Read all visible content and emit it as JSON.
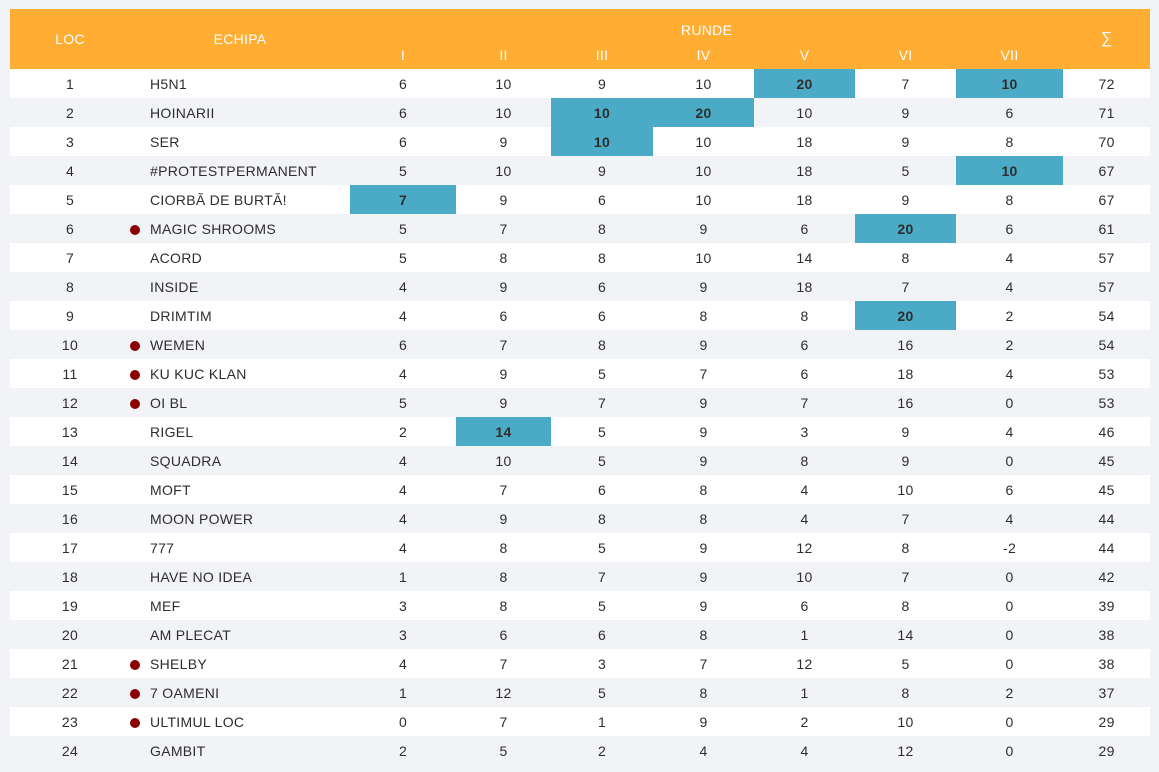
{
  "header": {
    "loc": "LOC",
    "echipa": "ECHIPA",
    "runde": "RUNDE",
    "rounds": [
      "I",
      "II",
      "III",
      "IV",
      "V",
      "VI",
      "VII"
    ],
    "total": "∑"
  },
  "colors": {
    "header_bg": "#ffad33",
    "highlight": "#4babc7",
    "dot": "#8b0000"
  },
  "rows": [
    {
      "loc": "1",
      "team": "H5N1",
      "dot": false,
      "scores": [
        "6",
        "10",
        "9",
        "10",
        "20",
        "7",
        "10"
      ],
      "total": "72",
      "hl": [
        4,
        6
      ]
    },
    {
      "loc": "2",
      "team": "HOINARII",
      "dot": false,
      "scores": [
        "6",
        "10",
        "10",
        "20",
        "10",
        "9",
        "6"
      ],
      "total": "71",
      "hl": [
        2,
        3
      ]
    },
    {
      "loc": "3",
      "team": "SER",
      "dot": false,
      "scores": [
        "6",
        "9",
        "10",
        "10",
        "18",
        "9",
        "8"
      ],
      "total": "70",
      "hl": [
        2
      ]
    },
    {
      "loc": "4",
      "team": "#PROTESTPERMANENT",
      "dot": false,
      "scores": [
        "5",
        "10",
        "9",
        "10",
        "18",
        "5",
        "10"
      ],
      "total": "67",
      "hl": [
        6
      ]
    },
    {
      "loc": "5",
      "team": "CIORBĂ DE BURTĂ!",
      "dot": false,
      "scores": [
        "7",
        "9",
        "6",
        "10",
        "18",
        "9",
        "8"
      ],
      "total": "67",
      "hl": [
        0
      ]
    },
    {
      "loc": "6",
      "team": "MAGIC SHROOMS",
      "dot": true,
      "scores": [
        "5",
        "7",
        "8",
        "9",
        "6",
        "20",
        "6"
      ],
      "total": "61",
      "hl": [
        5
      ]
    },
    {
      "loc": "7",
      "team": "ACORD",
      "dot": false,
      "scores": [
        "5",
        "8",
        "8",
        "10",
        "14",
        "8",
        "4"
      ],
      "total": "57",
      "hl": []
    },
    {
      "loc": "8",
      "team": "INSIDE",
      "dot": false,
      "scores": [
        "4",
        "9",
        "6",
        "9",
        "18",
        "7",
        "4"
      ],
      "total": "57",
      "hl": []
    },
    {
      "loc": "9",
      "team": "DRIMTIM",
      "dot": false,
      "scores": [
        "4",
        "6",
        "6",
        "8",
        "8",
        "20",
        "2"
      ],
      "total": "54",
      "hl": [
        5
      ]
    },
    {
      "loc": "10",
      "team": "WEMEN",
      "dot": true,
      "scores": [
        "6",
        "7",
        "8",
        "9",
        "6",
        "16",
        "2"
      ],
      "total": "54",
      "hl": []
    },
    {
      "loc": "11",
      "team": "KU KUC KLAN",
      "dot": true,
      "scores": [
        "4",
        "9",
        "5",
        "7",
        "6",
        "18",
        "4"
      ],
      "total": "53",
      "hl": []
    },
    {
      "loc": "12",
      "team": "OI BL",
      "dot": true,
      "scores": [
        "5",
        "9",
        "7",
        "9",
        "7",
        "16",
        "0"
      ],
      "total": "53",
      "hl": []
    },
    {
      "loc": "13",
      "team": "RIGEL",
      "dot": false,
      "scores": [
        "2",
        "14",
        "5",
        "9",
        "3",
        "9",
        "4"
      ],
      "total": "46",
      "hl": [
        1
      ]
    },
    {
      "loc": "14",
      "team": "SQUADRA",
      "dot": false,
      "scores": [
        "4",
        "10",
        "5",
        "9",
        "8",
        "9",
        "0"
      ],
      "total": "45",
      "hl": []
    },
    {
      "loc": "15",
      "team": "MOFT",
      "dot": false,
      "scores": [
        "4",
        "7",
        "6",
        "8",
        "4",
        "10",
        "6"
      ],
      "total": "45",
      "hl": []
    },
    {
      "loc": "16",
      "team": "MOON POWER",
      "dot": false,
      "scores": [
        "4",
        "9",
        "8",
        "8",
        "4",
        "7",
        "4"
      ],
      "total": "44",
      "hl": []
    },
    {
      "loc": "17",
      "team": "777",
      "dot": false,
      "scores": [
        "4",
        "8",
        "5",
        "9",
        "12",
        "8",
        "-2"
      ],
      "total": "44",
      "hl": []
    },
    {
      "loc": "18",
      "team": "HAVE NO IDEA",
      "dot": false,
      "scores": [
        "1",
        "8",
        "7",
        "9",
        "10",
        "7",
        "0"
      ],
      "total": "42",
      "hl": []
    },
    {
      "loc": "19",
      "team": "MEF",
      "dot": false,
      "scores": [
        "3",
        "8",
        "5",
        "9",
        "6",
        "8",
        "0"
      ],
      "total": "39",
      "hl": []
    },
    {
      "loc": "20",
      "team": "AM PLECAT",
      "dot": false,
      "scores": [
        "3",
        "6",
        "6",
        "8",
        "1",
        "14",
        "0"
      ],
      "total": "38",
      "hl": []
    },
    {
      "loc": "21",
      "team": "SHELBY",
      "dot": true,
      "scores": [
        "4",
        "7",
        "3",
        "7",
        "12",
        "5",
        "0"
      ],
      "total": "38",
      "hl": []
    },
    {
      "loc": "22",
      "team": "7 OAMENI",
      "dot": true,
      "scores": [
        "1",
        "12",
        "5",
        "8",
        "1",
        "8",
        "2"
      ],
      "total": "37",
      "hl": []
    },
    {
      "loc": "23",
      "team": "ULTIMUL LOC",
      "dot": true,
      "scores": [
        "0",
        "7",
        "1",
        "9",
        "2",
        "10",
        "0"
      ],
      "total": "29",
      "hl": []
    },
    {
      "loc": "24",
      "team": "GAMBIT",
      "dot": false,
      "scores": [
        "2",
        "5",
        "2",
        "4",
        "4",
        "12",
        "0"
      ],
      "total": "29",
      "hl": []
    }
  ]
}
